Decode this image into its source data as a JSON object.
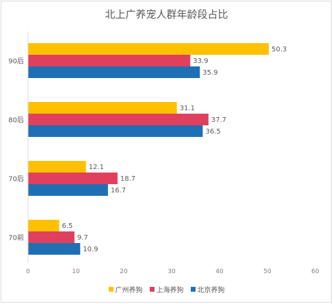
{
  "colors": {
    "guangzhou": "#FFC000",
    "shanghai": "#E0405E",
    "beijing": "#1F6FB4"
  },
  "chart_data": {
    "type": "bar",
    "orientation": "horizontal",
    "title": "北上广养宠人群年龄段占比",
    "xlabel": "",
    "ylabel": "",
    "categories": [
      "90后",
      "80后",
      "70后",
      "70前"
    ],
    "series": [
      {
        "name": "广州养狗",
        "color": "#FFC000",
        "values": [
          50.3,
          31.1,
          12.1,
          6.5
        ]
      },
      {
        "name": "上海养狗",
        "color": "#E0405E",
        "values": [
          33.9,
          37.7,
          18.7,
          9.7
        ]
      },
      {
        "name": "北京养狗",
        "color": "#1F6FB4",
        "values": [
          35.9,
          36.5,
          16.7,
          10.9
        ]
      }
    ],
    "xlim": [
      0,
      60
    ],
    "xticks": [
      0,
      10,
      20,
      30,
      40,
      50,
      60
    ],
    "grid": false,
    "legend_position": "bottom"
  }
}
